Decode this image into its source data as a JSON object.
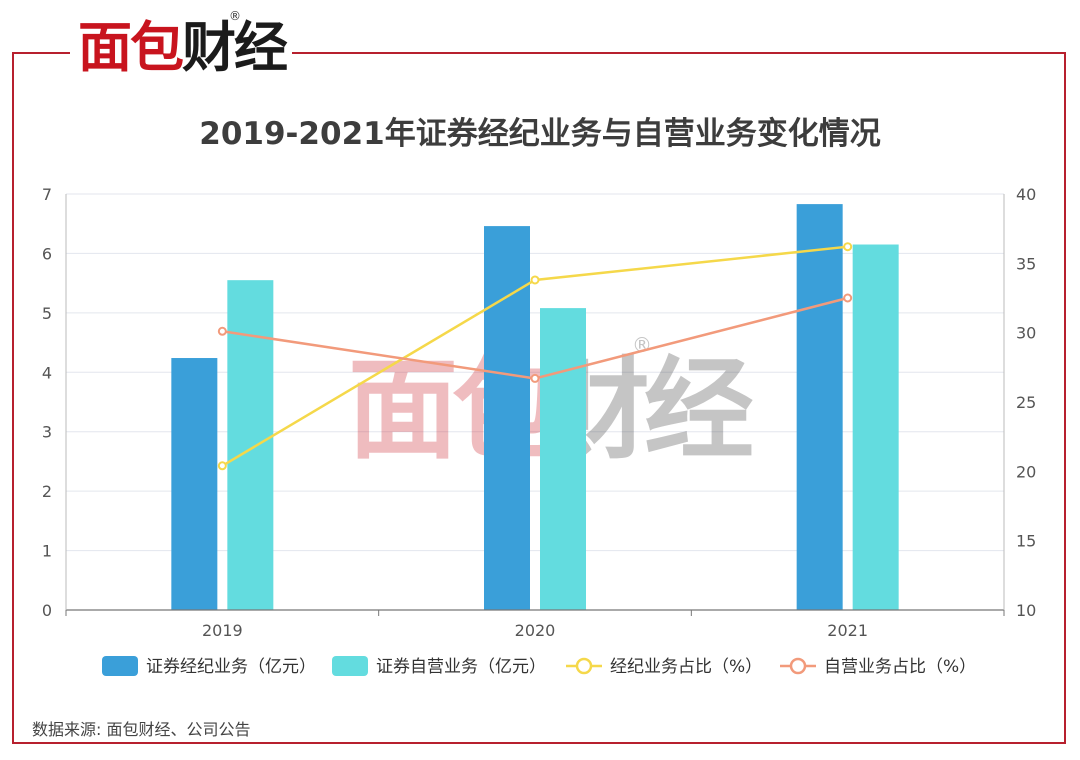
{
  "brand": {
    "logo_red": "面包",
    "logo_black": "财经",
    "registered": "®",
    "frame_color": "#b7202e"
  },
  "title": "2019-2021年证券经纪业务与自营业务变化情况",
  "source": "数据来源: 面包财经、公司公告",
  "chart_data": {
    "type": "bar",
    "categories": [
      "2019",
      "2020",
      "2021"
    ],
    "series": [
      {
        "name": "证券经纪业务（亿元）",
        "kind": "bar",
        "axis": "left",
        "color": "#3a9fd9",
        "values": [
          4.24,
          6.46,
          6.83
        ]
      },
      {
        "name": "证券自营业务（亿元）",
        "kind": "bar",
        "axis": "left",
        "color": "#63dcdf",
        "values": [
          5.55,
          5.08,
          6.15
        ]
      },
      {
        "name": "经纪业务占比（%）",
        "kind": "line",
        "axis": "right",
        "color": "#f5d84a",
        "values": [
          20.4,
          33.8,
          36.2
        ]
      },
      {
        "name": "自营业务占比（%）",
        "kind": "line",
        "axis": "right",
        "color": "#f29a7b",
        "values": [
          30.1,
          26.7,
          32.5
        ]
      }
    ],
    "y_left": {
      "min": 0,
      "max": 7,
      "ticks": [
        0,
        1,
        2,
        3,
        4,
        5,
        6,
        7
      ]
    },
    "y_right": {
      "min": 10,
      "max": 40,
      "ticks": [
        10,
        15,
        20,
        25,
        30,
        35,
        40
      ]
    },
    "grid": true,
    "legend_position": "bottom"
  }
}
